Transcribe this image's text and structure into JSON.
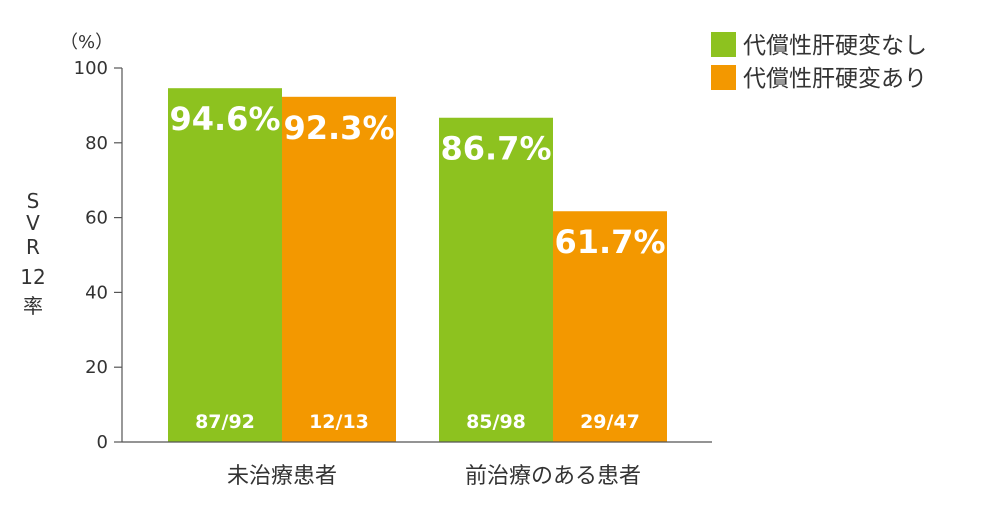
{
  "chart_data": {
    "type": "bar",
    "unit": "（%）",
    "ylabel": [
      "S",
      "V",
      "R",
      "12",
      "率"
    ],
    "ylim": [
      0,
      100
    ],
    "yticks": [
      "0",
      "20",
      "40",
      "60",
      "80",
      "100"
    ],
    "categories": [
      "未治療患者",
      "前治療のある患者"
    ],
    "series": [
      {
        "name": "代償性肝硬変なし",
        "color": "#8dc21f",
        "values": [
          94.6,
          86.7
        ],
        "labels": [
          "94.6%",
          "86.7%"
        ],
        "fractions": [
          "87/92",
          "85/98"
        ]
      },
      {
        "name": "代償性肝硬変あり",
        "color": "#f39800",
        "values": [
          92.3,
          61.7
        ],
        "labels": [
          "92.3%",
          "61.7%"
        ],
        "fractions": [
          "12/13",
          "29/47"
        ]
      }
    ],
    "legend_position": "top-right",
    "grid": false
  }
}
